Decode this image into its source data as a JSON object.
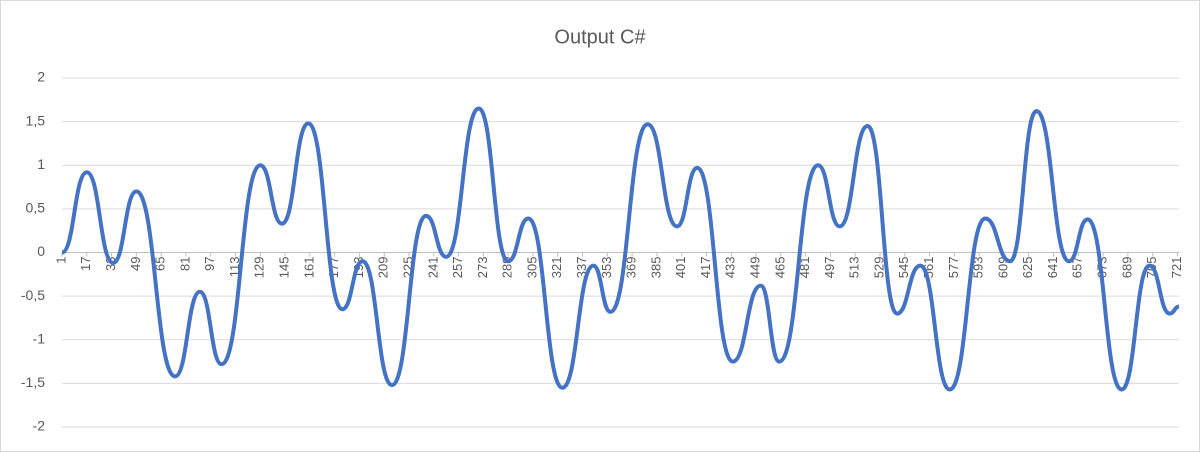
{
  "chart_data": {
    "type": "line",
    "title": "Output C#",
    "x": [
      1,
      17,
      34,
      49,
      74,
      90,
      104,
      129,
      143,
      160,
      182,
      195,
      214,
      236,
      249,
      270,
      289,
      302,
      324,
      344,
      355,
      379,
      398,
      411,
      434,
      452,
      464,
      489,
      503,
      521,
      540,
      555,
      574,
      597,
      613,
      630,
      651,
      663,
      685,
      703,
      716,
      722
    ],
    "series": [
      {
        "color": "#4472c4",
        "values": [
          0,
          0.92,
          -0.12,
          0.7,
          -1.42,
          -0.45,
          -1.28,
          1.0,
          0.33,
          1.48,
          -0.65,
          -0.1,
          -1.52,
          0.42,
          -0.05,
          1.65,
          -0.1,
          0.39,
          -1.55,
          -0.15,
          -0.68,
          1.47,
          0.3,
          0.97,
          -1.25,
          -0.38,
          -1.25,
          1.0,
          0.3,
          1.45,
          -0.7,
          -0.15,
          -1.57,
          0.39,
          -0.1,
          1.62,
          -0.1,
          0.38,
          -1.57,
          -0.15,
          -0.7,
          -0.62
        ]
      }
    ],
    "xlim": [
      1,
      722
    ],
    "xticks": [
      1,
      17,
      33,
      49,
      65,
      81,
      97,
      113,
      129,
      145,
      161,
      177,
      193,
      209,
      225,
      241,
      257,
      273,
      289,
      305,
      321,
      337,
      353,
      369,
      385,
      401,
      417,
      433,
      449,
      465,
      481,
      497,
      513,
      529,
      545,
      561,
      577,
      593,
      609,
      625,
      641,
      657,
      673,
      689,
      705,
      721
    ],
    "ylim": [
      -2,
      2
    ],
    "yticks": [
      2,
      {
        "value": 1.5,
        "label": "1,5"
      },
      1,
      {
        "value": 0.5,
        "label": "0,5"
      },
      0,
      {
        "value": -0.5,
        "label": "-0,5"
      },
      -1,
      {
        "value": -1.5,
        "label": "-1,5"
      },
      -2
    ],
    "grid": true
  }
}
